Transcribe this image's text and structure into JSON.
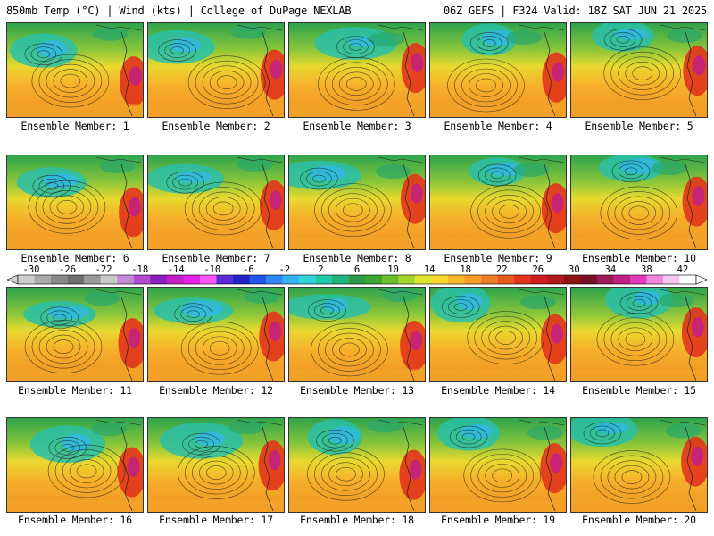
{
  "header": {
    "left_text": "850mb Temp (°C) | Wind (kts) | College of DuPage NEXLAB",
    "right_text": "06Z GEFS | F324 Valid: 18Z SAT JUN 21 2025"
  },
  "members": [
    {
      "label": "Ensemble Member: 1"
    },
    {
      "label": "Ensemble Member: 2"
    },
    {
      "label": "Ensemble Member: 3"
    },
    {
      "label": "Ensemble Member: 4"
    },
    {
      "label": "Ensemble Member: 5"
    },
    {
      "label": "Ensemble Member: 6"
    },
    {
      "label": "Ensemble Member: 7"
    },
    {
      "label": "Ensemble Member: 8"
    },
    {
      "label": "Ensemble Member: 9"
    },
    {
      "label": "Ensemble Member: 10"
    },
    {
      "label": "Ensemble Member: 11"
    },
    {
      "label": "Ensemble Member: 12"
    },
    {
      "label": "Ensemble Member: 13"
    },
    {
      "label": "Ensemble Member: 14"
    },
    {
      "label": "Ensemble Member: 15"
    },
    {
      "label": "Ensemble Member: 16"
    },
    {
      "label": "Ensemble Member: 17"
    },
    {
      "label": "Ensemble Member: 18"
    },
    {
      "label": "Ensemble Member: 19"
    },
    {
      "label": "Ensemble Member: 20"
    }
  ],
  "colorbar": {
    "tick_labels": [
      "-30",
      "-26",
      "-22",
      "-18",
      "-14",
      "-10",
      "-6",
      "-2",
      "2",
      "6",
      "10",
      "14",
      "18",
      "22",
      "26",
      "30",
      "34",
      "38",
      "42"
    ],
    "colors": [
      "#cfcfcf",
      "#a9a9a9",
      "#888888",
      "#6f6f6f",
      "#9a9a9a",
      "#c9c9c9",
      "#c58ad6",
      "#b24bd0",
      "#8d1fc0",
      "#c21ec6",
      "#e31fe0",
      "#ff55ff",
      "#5a2bd6",
      "#2121c8",
      "#2255e6",
      "#2f86f0",
      "#35b4f5",
      "#31d3d9",
      "#23c9a6",
      "#1fb47a",
      "#2a9c45",
      "#3aa52f",
      "#6cbf2b",
      "#a6d62d",
      "#e1e52f",
      "#f6d92c",
      "#f7b92a",
      "#f59b27",
      "#f07d23",
      "#ea5a1f",
      "#e2341b",
      "#cf1d1d",
      "#b01a1a",
      "#8e1414",
      "#7a0f2a",
      "#9b1b57",
      "#c21f86",
      "#e03ab6",
      "#ef86e0",
      "#f7c6f0",
      "#ffffff"
    ]
  }
}
